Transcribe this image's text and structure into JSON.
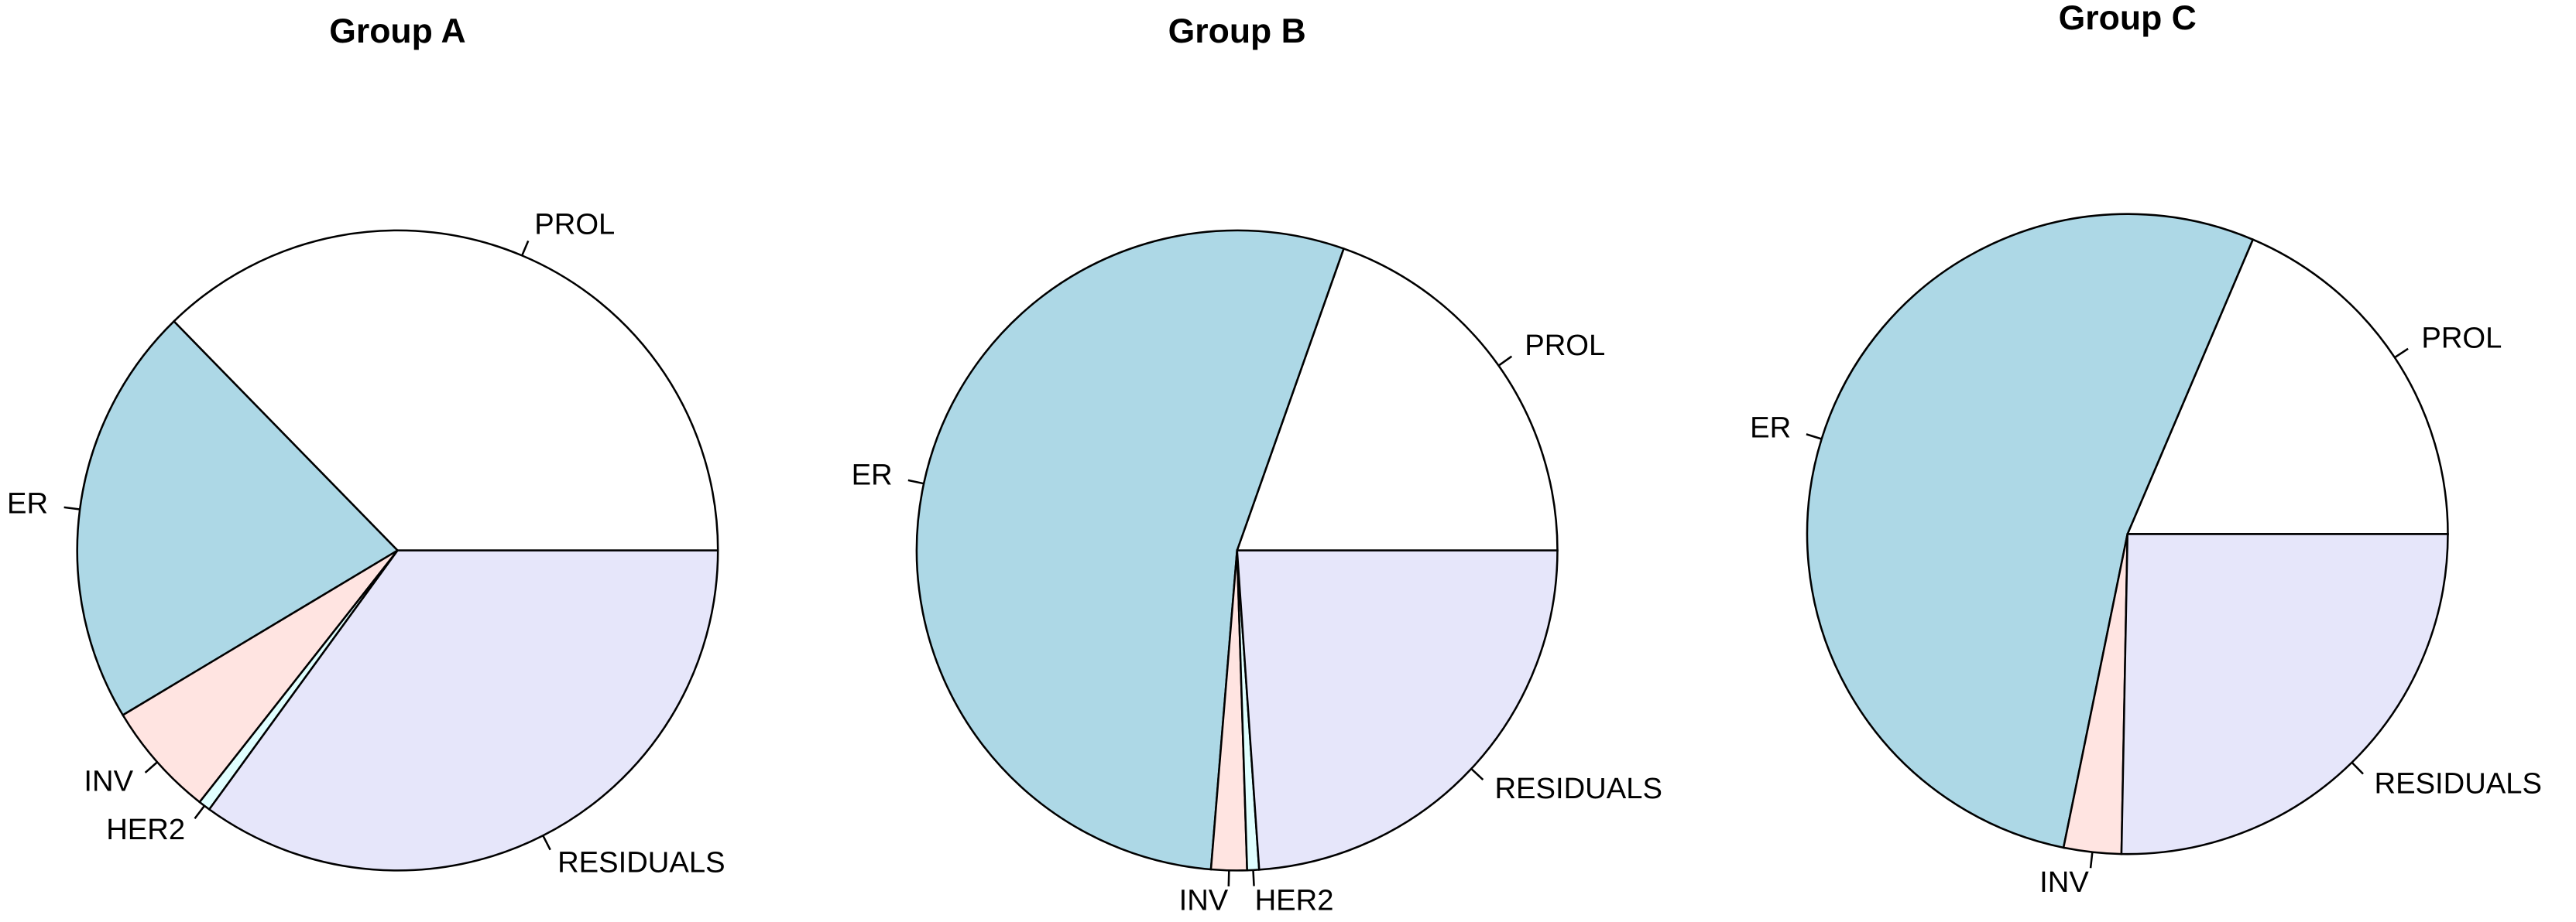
{
  "chart_data": [
    {
      "type": "pie",
      "title": "Group A",
      "categories": [
        "PROL",
        "ER",
        "INV",
        "HER2",
        "RESIDUALS"
      ],
      "values": [
        37.3,
        21.3,
        5.8,
        0.6,
        35.0
      ],
      "colors": [
        "#ffffff",
        "#add8e6",
        "#ffe4e1",
        "#e0ffff",
        "#e6e6fa"
      ]
    },
    {
      "type": "pie",
      "title": "Group B",
      "categories": [
        "PROL",
        "ER",
        "INV",
        "HER2",
        "RESIDUALS"
      ],
      "values": [
        19.6,
        54.1,
        1.8,
        0.6,
        23.9
      ],
      "colors": [
        "#ffffff",
        "#add8e6",
        "#ffe4e1",
        "#e0ffff",
        "#e6e6fa"
      ]
    },
    {
      "type": "pie",
      "title": "Group C",
      "categories": [
        "PROL",
        "ER",
        "INV",
        "RESIDUALS"
      ],
      "values": [
        18.6,
        53.2,
        2.9,
        25.3
      ],
      "colors": [
        "#ffffff",
        "#add8e6",
        "#ffe4e1",
        "#e6e6fa"
      ]
    }
  ]
}
